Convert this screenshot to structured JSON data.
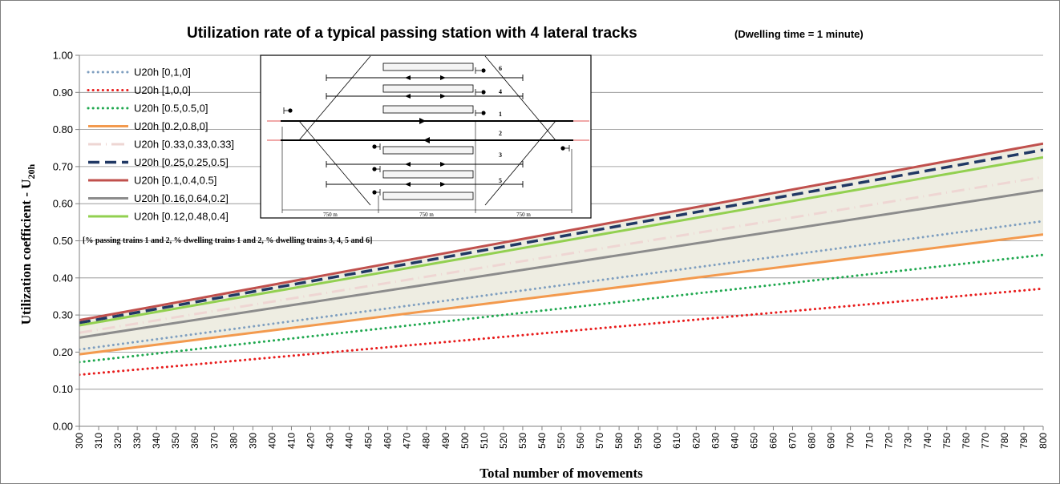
{
  "chart_data": {
    "type": "line",
    "title": "Utilization rate of a typical passing station with 4 lateral tracks",
    "subtitle": "(Dwelling time =  1 minute)",
    "xlabel": "Total number of movements",
    "ylabel_main": "Utilization coefficient - U",
    "ylabel_sub": "20h",
    "xlim": [
      300,
      800
    ],
    "ylim": [
      0,
      1
    ],
    "x_ticks": [
      300,
      310,
      320,
      330,
      340,
      350,
      360,
      370,
      380,
      390,
      400,
      410,
      420,
      430,
      440,
      450,
      460,
      470,
      480,
      490,
      500,
      510,
      520,
      530,
      540,
      550,
      560,
      570,
      580,
      590,
      600,
      610,
      620,
      630,
      640,
      650,
      660,
      670,
      680,
      690,
      700,
      710,
      720,
      730,
      740,
      750,
      760,
      770,
      780,
      790,
      800
    ],
    "y_ticks": [
      "0.00",
      "0.10",
      "0.20",
      "0.30",
      "0.40",
      "0.50",
      "0.60",
      "0.70",
      "0.80",
      "0.90",
      "1.00"
    ],
    "grid": true,
    "legend_position": "top-left",
    "shaded_band": {
      "upper_series": 6,
      "lower_series": 3,
      "color": "#eeede2"
    },
    "legend_note": "[% passing trains 1 and 2,  % dwelling trains 1 and 2, % dwelling trains 3, 4, 5 and 6]",
    "series": [
      {
        "name": "U20h [0,1,0]",
        "x": [
          300,
          800
        ],
        "y": [
          0.207,
          0.553
        ],
        "color": "#7f9fc0",
        "style": "dotted",
        "width": 3
      },
      {
        "name": "U20h  [1,0,0]",
        "x": [
          300,
          800
        ],
        "y": [
          0.139,
          0.371
        ],
        "color": "#e81c1c",
        "style": "dotted",
        "width": 3
      },
      {
        "name": "U20h [0.5,0.5,0]",
        "x": [
          300,
          800
        ],
        "y": [
          0.173,
          0.462
        ],
        "color": "#1fa84f",
        "style": "dotted",
        "width": 3
      },
      {
        "name": "U20h [0.2,0.8,0]",
        "x": [
          300,
          800
        ],
        "y": [
          0.194,
          0.517
        ],
        "color": "#f39a4e",
        "style": "solid",
        "width": 3
      },
      {
        "name": "U20h [0.33,0.33,0.33]",
        "x": [
          300,
          800
        ],
        "y": [
          0.252,
          0.672
        ],
        "color": "#eed6d3",
        "style": "dash-dot",
        "width": 3
      },
      {
        "name": "U20h [0.25,0.25,0.5]",
        "x": [
          300,
          800
        ],
        "y": [
          0.279,
          0.745
        ],
        "color": "#203864",
        "style": "dashed",
        "width": 3.5
      },
      {
        "name": "U20h [0.1,0.4,0.5]",
        "x": [
          300,
          800
        ],
        "y": [
          0.286,
          0.762
        ],
        "color": "#c0504d",
        "style": "solid",
        "width": 3
      },
      {
        "name": "U20h [0.16,0.64,0.2]",
        "x": [
          300,
          800
        ],
        "y": [
          0.239,
          0.636
        ],
        "color": "#8c8c8c",
        "style": "solid",
        "width": 3
      },
      {
        "name": "U20h [0.12,0.48,0.4]",
        "x": [
          300,
          800
        ],
        "y": [
          0.272,
          0.725
        ],
        "color": "#92d050",
        "style": "solid",
        "width": 3
      }
    ]
  },
  "diagram": {
    "track_labels": [
      "6",
      "4",
      "1",
      "2",
      "3",
      "5"
    ],
    "distances": [
      "750 m",
      "750 m",
      "750 m"
    ]
  }
}
